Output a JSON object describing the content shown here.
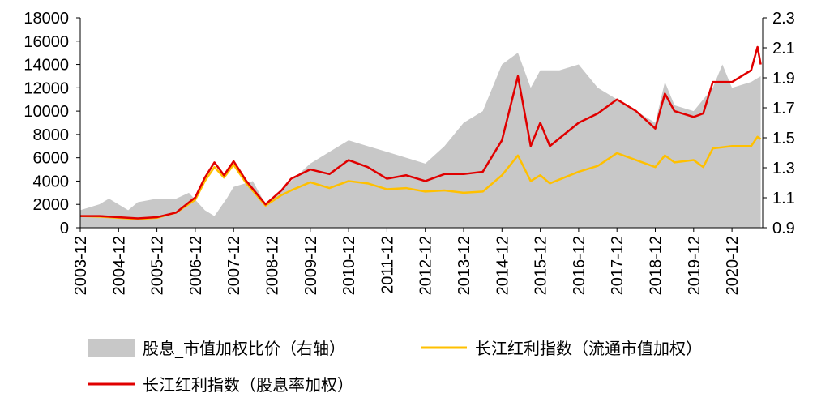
{
  "chart_data": {
    "type": "line",
    "title": "",
    "xlabel": "",
    "ylabel": "",
    "ylim_left": [
      0,
      18000
    ],
    "ylim_right": [
      0.9,
      2.3
    ],
    "yticks_left": [
      "0",
      "2000",
      "4000",
      "6000",
      "8000",
      "10000",
      "12000",
      "14000",
      "16000",
      "18000"
    ],
    "yticks_right": [
      "0.9",
      "1.1",
      "1.3",
      "1.5",
      "1.7",
      "1.9",
      "2.1",
      "2.3"
    ],
    "xticks": [
      "2003-12",
      "2004-12",
      "2005-12",
      "2006-12",
      "2007-12",
      "2008-12",
      "2009-12",
      "2010-12",
      "2011-12",
      "2012-12",
      "2013-12",
      "2014-12",
      "2015-12",
      "2016-12",
      "2017-12",
      "2018-12",
      "2019-12",
      "2020-12"
    ],
    "grid": false,
    "legend_placement": "bottom",
    "series": [
      {
        "name": "股息_市值加权比价（右轴）",
        "kind": "area",
        "axis": "right",
        "color": "#c8c8c8",
        "points": [
          [
            "2003-12",
            1.017
          ],
          [
            "2004-06",
            1.056
          ],
          [
            "2004-09",
            1.094
          ],
          [
            "2005-03",
            1.017
          ],
          [
            "2005-06",
            1.07
          ],
          [
            "2005-12",
            1.094
          ],
          [
            "2006-06",
            1.094
          ],
          [
            "2006-10",
            1.133
          ],
          [
            "2007-03",
            1.017
          ],
          [
            "2007-06",
            0.978
          ],
          [
            "2007-10",
            1.1
          ],
          [
            "2007-12",
            1.172
          ],
          [
            "2008-06",
            1.211
          ],
          [
            "2008-10",
            1.056
          ],
          [
            "2009-06",
            1.211
          ],
          [
            "2009-12",
            1.328
          ],
          [
            "2010-06",
            1.406
          ],
          [
            "2010-12",
            1.483
          ],
          [
            "2011-06",
            1.444
          ],
          [
            "2011-12",
            1.406
          ],
          [
            "2012-06",
            1.367
          ],
          [
            "2012-12",
            1.328
          ],
          [
            "2013-06",
            1.444
          ],
          [
            "2013-12",
            1.6
          ],
          [
            "2014-06",
            1.678
          ],
          [
            "2014-12",
            1.989
          ],
          [
            "2015-05",
            2.067
          ],
          [
            "2015-09",
            1.833
          ],
          [
            "2015-12",
            1.95
          ],
          [
            "2016-06",
            1.95
          ],
          [
            "2016-12",
            1.989
          ],
          [
            "2017-06",
            1.833
          ],
          [
            "2017-12",
            1.756
          ],
          [
            "2018-06",
            1.678
          ],
          [
            "2018-12",
            1.6
          ],
          [
            "2019-03",
            1.872
          ],
          [
            "2019-06",
            1.717
          ],
          [
            "2019-12",
            1.678
          ],
          [
            "2020-06",
            1.833
          ],
          [
            "2020-09",
            1.989
          ],
          [
            "2020-12",
            1.833
          ],
          [
            "2021-06",
            1.872
          ],
          [
            "2021-09",
            1.911
          ]
        ]
      },
      {
        "name": "长江红利指数（流通市值加权）",
        "kind": "line",
        "axis": "left",
        "color": "#ffc000",
        "points": [
          [
            "2003-12",
            1000
          ],
          [
            "2004-06",
            950
          ],
          [
            "2005-06",
            750
          ],
          [
            "2005-12",
            850
          ],
          [
            "2006-06",
            1300
          ],
          [
            "2006-12",
            2400
          ],
          [
            "2007-03",
            4000
          ],
          [
            "2007-06",
            5200
          ],
          [
            "2007-09",
            4300
          ],
          [
            "2007-12",
            5400
          ],
          [
            "2008-04",
            3800
          ],
          [
            "2008-10",
            1900
          ],
          [
            "2009-03",
            2800
          ],
          [
            "2009-06",
            3200
          ],
          [
            "2009-12",
            3900
          ],
          [
            "2010-06",
            3400
          ],
          [
            "2010-12",
            4000
          ],
          [
            "2011-06",
            3800
          ],
          [
            "2011-12",
            3300
          ],
          [
            "2012-06",
            3400
          ],
          [
            "2012-12",
            3100
          ],
          [
            "2013-06",
            3200
          ],
          [
            "2013-12",
            3000
          ],
          [
            "2014-06",
            3100
          ],
          [
            "2014-12",
            4500
          ],
          [
            "2015-05",
            6200
          ],
          [
            "2015-09",
            4000
          ],
          [
            "2015-12",
            4500
          ],
          [
            "2016-03",
            3800
          ],
          [
            "2016-12",
            4800
          ],
          [
            "2017-06",
            5300
          ],
          [
            "2017-12",
            6400
          ],
          [
            "2018-06",
            5800
          ],
          [
            "2018-12",
            5200
          ],
          [
            "2019-03",
            6200
          ],
          [
            "2019-06",
            5600
          ],
          [
            "2019-12",
            5800
          ],
          [
            "2020-03",
            5200
          ],
          [
            "2020-06",
            6800
          ],
          [
            "2020-12",
            7000
          ],
          [
            "2021-06",
            7000
          ],
          [
            "2021-08",
            7800
          ],
          [
            "2021-09",
            7600
          ]
        ]
      },
      {
        "name": "长江红利指数（股息率加权）",
        "kind": "line",
        "axis": "left",
        "color": "#e00000",
        "points": [
          [
            "2003-12",
            1000
          ],
          [
            "2004-06",
            1000
          ],
          [
            "2005-06",
            800
          ],
          [
            "2005-12",
            900
          ],
          [
            "2006-06",
            1300
          ],
          [
            "2006-12",
            2600
          ],
          [
            "2007-03",
            4300
          ],
          [
            "2007-06",
            5600
          ],
          [
            "2007-09",
            4500
          ],
          [
            "2007-12",
            5700
          ],
          [
            "2008-04",
            4000
          ],
          [
            "2008-10",
            2000
          ],
          [
            "2009-03",
            3200
          ],
          [
            "2009-06",
            4200
          ],
          [
            "2009-12",
            5000
          ],
          [
            "2010-06",
            4600
          ],
          [
            "2010-12",
            5800
          ],
          [
            "2011-06",
            5200
          ],
          [
            "2011-12",
            4200
          ],
          [
            "2012-06",
            4500
          ],
          [
            "2012-12",
            4000
          ],
          [
            "2013-06",
            4600
          ],
          [
            "2013-12",
            4600
          ],
          [
            "2014-06",
            4800
          ],
          [
            "2014-12",
            7500
          ],
          [
            "2015-05",
            13000
          ],
          [
            "2015-09",
            7000
          ],
          [
            "2015-12",
            9000
          ],
          [
            "2016-03",
            7000
          ],
          [
            "2016-12",
            9000
          ],
          [
            "2017-06",
            9800
          ],
          [
            "2017-12",
            11000
          ],
          [
            "2018-06",
            10000
          ],
          [
            "2018-12",
            8500
          ],
          [
            "2019-03",
            11500
          ],
          [
            "2019-06",
            10000
          ],
          [
            "2019-12",
            9500
          ],
          [
            "2020-03",
            9800
          ],
          [
            "2020-06",
            12500
          ],
          [
            "2020-12",
            12500
          ],
          [
            "2021-06",
            13500
          ],
          [
            "2021-08",
            15500
          ],
          [
            "2021-09",
            14000
          ]
        ]
      }
    ]
  }
}
